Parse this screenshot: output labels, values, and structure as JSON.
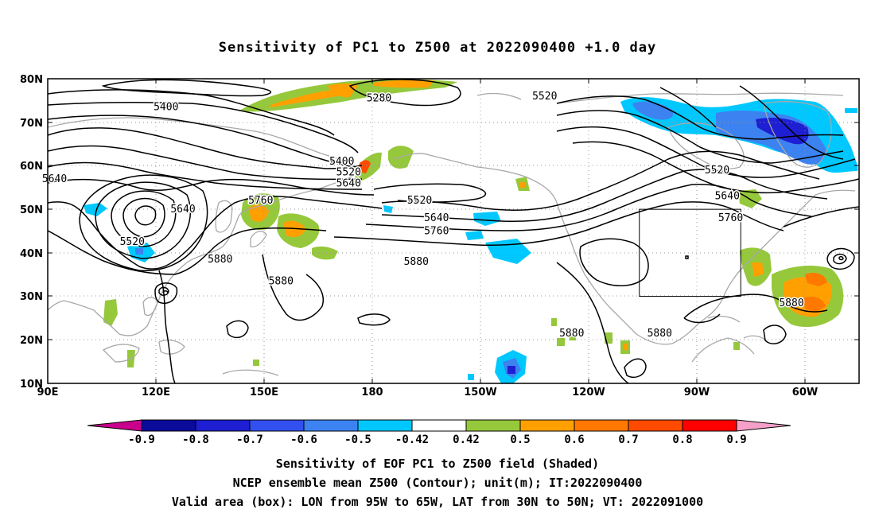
{
  "title": "Sensitivity of PC1 to Z500 at 2022090400 +1.0 day",
  "map": {
    "lat_labels": [
      "80N",
      "70N",
      "60N",
      "50N",
      "40N",
      "30N",
      "20N",
      "10N"
    ],
    "lon_labels": [
      "90E",
      "120E",
      "150E",
      "180",
      "150W",
      "120W",
      "90W",
      "60W"
    ],
    "contour_labels": [
      {
        "text": "5400",
        "lon": 125,
        "lat": 73.5
      },
      {
        "text": "5280",
        "lon": -172,
        "lat": 75.5
      },
      {
        "text": "5520",
        "lon": -123,
        "lat": 76
      },
      {
        "text": "5400",
        "lon": 177,
        "lat": 61
      },
      {
        "text": "5520",
        "lon": 179,
        "lat": 58.5
      },
      {
        "text": "5640",
        "lon": 179,
        "lat": 56
      },
      {
        "text": "5640",
        "lon": 92,
        "lat": 57
      },
      {
        "text": "5640",
        "lon": 130,
        "lat": 50
      },
      {
        "text": "5520",
        "lon": 115,
        "lat": 42.5
      },
      {
        "text": "5760",
        "lon": 153,
        "lat": 52
      },
      {
        "text": "5880",
        "lon": 141,
        "lat": 38.5
      },
      {
        "text": "5880",
        "lon": 159,
        "lat": 33.5
      },
      {
        "text": "5520",
        "lon": -160,
        "lat": 52
      },
      {
        "text": "5640",
        "lon": -155,
        "lat": 48
      },
      {
        "text": "5760",
        "lon": -155,
        "lat": 45
      },
      {
        "text": "5880",
        "lon": -161,
        "lat": 38
      },
      {
        "text": "5520",
        "lon": -72,
        "lat": 59
      },
      {
        "text": "5640",
        "lon": -69,
        "lat": 53
      },
      {
        "text": "5760",
        "lon": -68,
        "lat": 48
      },
      {
        "text": "5880",
        "lon": -115,
        "lat": 21.5
      },
      {
        "text": "5880",
        "lon": -89,
        "lat": 21.5
      },
      {
        "text": "5880",
        "lon": -50,
        "lat": 28.5
      }
    ],
    "validation_box": {
      "lon_west": -95,
      "lon_east": -65,
      "lat_south": 30,
      "lat_north": 50
    }
  },
  "colorbar": {
    "labels": [
      "-0.9",
      "-0.8",
      "-0.7",
      "-0.6",
      "-0.5",
      "-0.42",
      "0.42",
      "0.5",
      "0.6",
      "0.7",
      "0.8",
      "0.9"
    ],
    "colors": [
      "#0a0a9b",
      "#1e1ed2",
      "#3250f0",
      "#3c82f0",
      "#00c8ff",
      "#ffffff",
      "#96c83c",
      "#ffa000",
      "#ff7800",
      "#ff4a00",
      "#ff0000"
    ],
    "end_low": "#c8008c",
    "end_high": "#f5a0c8"
  },
  "footer": {
    "line1": "Sensitivity of EOF PC1 to Z500 field (Shaded)",
    "line2": "NCEP ensemble mean Z500 (Contour); unit(m); IT:2022090400",
    "line3": "Valid area (box): LON from 95W to 65W, LAT from 30N to 50N; VT: 2022091000"
  }
}
